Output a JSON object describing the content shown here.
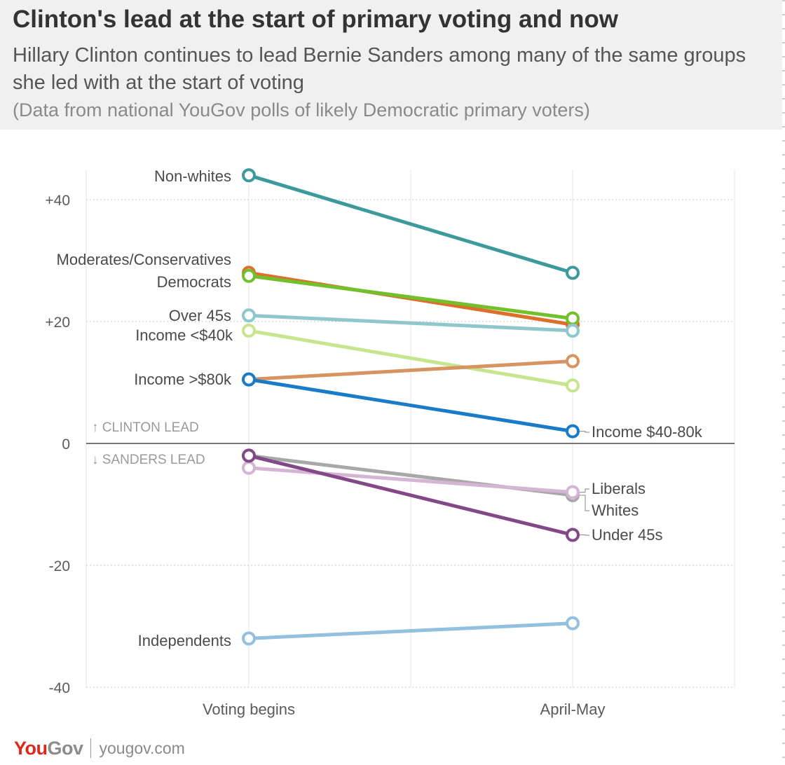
{
  "header": {
    "title": "Clinton's lead at the start of primary voting and now",
    "subtitle": "Hillary Clinton continues to lead Bernie Sanders among many of the same groups she led with at the start of voting",
    "note": "(Data from national YouGov polls of likely Democratic primary voters)"
  },
  "chart_data": {
    "type": "line",
    "categories": [
      "Voting begins",
      "April-May"
    ],
    "ylim": [
      -40,
      45
    ],
    "y_ticks": [
      {
        "value": 40,
        "label": "+40"
      },
      {
        "value": 20,
        "label": "+20"
      },
      {
        "value": 0,
        "label": "0"
      },
      {
        "value": -20,
        "label": "-20"
      },
      {
        "value": -40,
        "label": "-40"
      }
    ],
    "grid": true,
    "annotations": {
      "clinton_lead": "↑ CLINTON LEAD",
      "sanders_lead": "↓ SANDERS LEAD"
    },
    "series": [
      {
        "name": "Non-whites",
        "values": [
          44,
          28
        ],
        "color": "#3d9a9c",
        "label_side": "left"
      },
      {
        "name": "Moderates/Conservatives",
        "values": [
          28,
          19.5
        ],
        "color": "#dd6f2b",
        "label_side": "left"
      },
      {
        "name": "Democrats",
        "values": [
          27.5,
          20.5
        ],
        "color": "#72c02c",
        "label_side": "left"
      },
      {
        "name": "Over 45s",
        "values": [
          21,
          18.5
        ],
        "color": "#8ec8cc",
        "label_side": "left"
      },
      {
        "name": "Income <$40k",
        "values": [
          18.5,
          9.5
        ],
        "color": "#c7e58e",
        "label_side": "left"
      },
      {
        "name": "Income >$80k",
        "values": [
          10.5,
          13.5
        ],
        "color": "#d79460",
        "label_side": "left"
      },
      {
        "name": "Income $40-80k",
        "values": [
          10.5,
          2
        ],
        "color": "#1a7cc8",
        "label_side": "right"
      },
      {
        "name": "Whites",
        "values": [
          -2,
          -8.5
        ],
        "color": "#a8a8a8",
        "label_side": "right"
      },
      {
        "name": "Liberals",
        "values": [
          -4,
          -8
        ],
        "color": "#d4b6d4",
        "label_side": "right"
      },
      {
        "name": "Under 45s",
        "values": [
          -2,
          -15
        ],
        "color": "#834888",
        "label_side": "right"
      },
      {
        "name": "Independents",
        "values": [
          -32,
          -29.5
        ],
        "color": "#93c0de",
        "label_side": "left"
      }
    ]
  },
  "footer": {
    "logo_you": "You",
    "logo_gov": "Gov",
    "site": "yougov.com"
  }
}
